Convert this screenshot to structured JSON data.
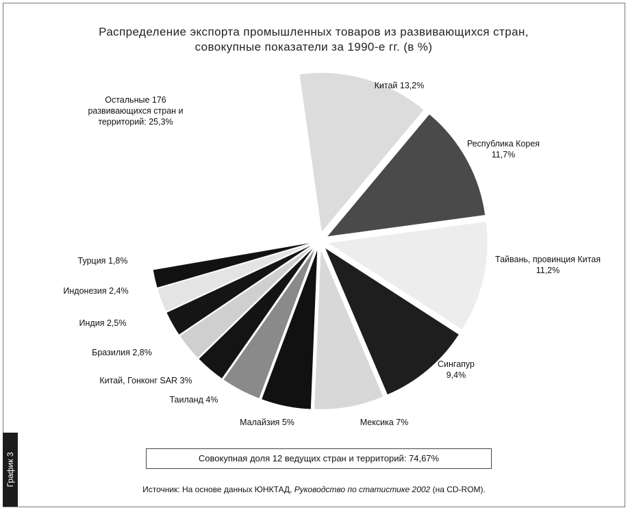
{
  "chart_data": {
    "type": "pie",
    "title": "Распределение экспорта промышленных товаров из развивающихся стран, совокупные показатели за 1990-е гг. (в %)",
    "categories": [
      "Китай",
      "Республика Корея",
      "Тайвань, провинция Китая",
      "Сингапур",
      "Мексика",
      "Малайзия",
      "Таиланд",
      "Китай, Гонконг SAR",
      "Бразилия",
      "Индия",
      "Индонезия",
      "Турция",
      "Остальные 176 развивающихся стран и территорий:"
    ],
    "values": [
      13.2,
      11.7,
      11.2,
      9.4,
      7,
      5,
      4,
      3,
      2.8,
      2.5,
      2.4,
      1.8,
      25.3
    ],
    "value_labels": [
      "13,2%",
      "11,7%",
      "11,2%",
      "9,4%",
      "7%",
      "5%",
      "4%",
      "3%",
      "2,8%",
      "2,5%",
      "2,4%",
      "1,8%",
      "25,3%"
    ],
    "colors": [
      "#dcdcdc",
      "#4a4a4a",
      "#ededed",
      "#1e1e1e",
      "#d8d8d8",
      "#111111",
      "#8a8a8a",
      "#141414",
      "#cfcfcf",
      "#151515",
      "#e4e4e4",
      "#121212",
      "#ffffff"
    ],
    "note": "Совокупная доля 12 ведущих стран и территорий: 74,67%",
    "source_prefix": "Источник: На основе данных ЮНКТАД,",
    "source_title": "Руководство по статистике 2002",
    "source_suffix": "(на CD-ROM).",
    "side_label": "График 3"
  }
}
